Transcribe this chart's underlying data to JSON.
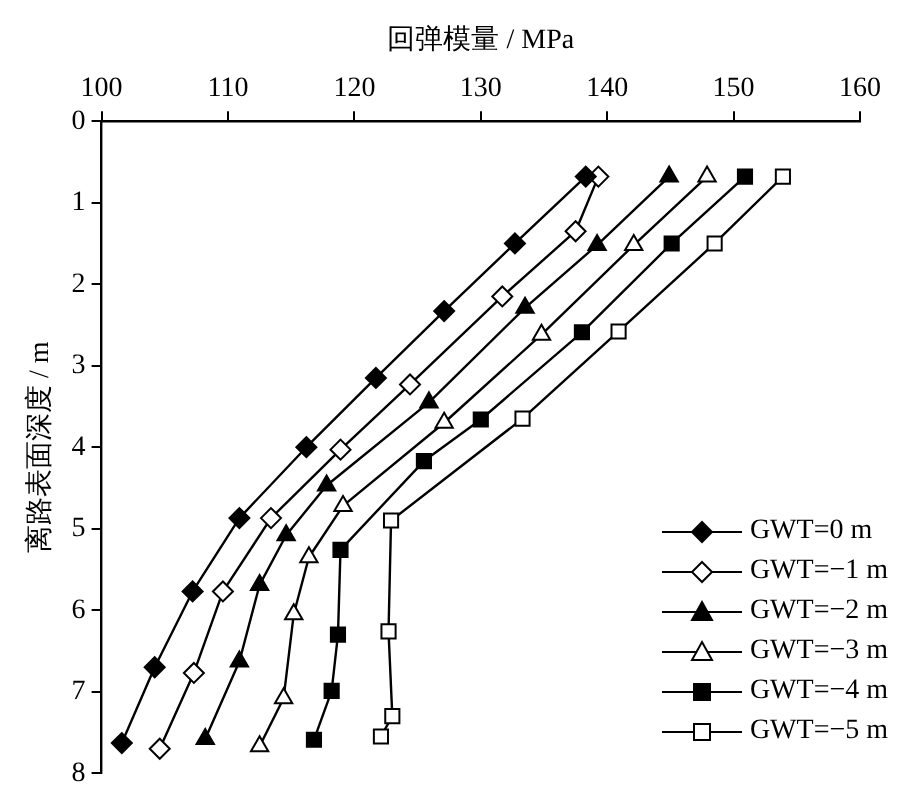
{
  "chart_data": {
    "type": "line",
    "xlabel": "回弹模量 / MPa",
    "ylabel": "离路表面深度 / m",
    "xlim": [
      100,
      160
    ],
    "xticks": [
      100,
      110,
      120,
      130,
      140,
      150,
      160
    ],
    "ylim": [
      8,
      0
    ],
    "yticks": [
      0,
      1,
      2,
      3,
      4,
      5,
      6,
      7,
      8
    ],
    "grid": false,
    "legend": "bottom right",
    "line_style": "solid",
    "series": [
      {
        "name": "GWT=0 m",
        "color": "#000000",
        "marker": "diamond",
        "x": [
          138.3,
          132.7,
          127.1,
          121.7,
          116.2,
          110.9,
          107.2,
          104.2,
          101.6
        ],
        "values": [
          0.68,
          1.5,
          2.33,
          3.15,
          4.0,
          4.87,
          5.77,
          6.7,
          7.63
        ]
      },
      {
        "name": "GWT=−1 m",
        "color": "#000000",
        "marker": "diamond",
        "x": [
          139.3,
          137.5,
          131.7,
          124.4,
          118.9,
          113.4,
          109.6,
          107.3,
          104.6
        ],
        "values": [
          0.68,
          1.35,
          2.15,
          3.23,
          4.03,
          4.87,
          5.77,
          6.77,
          7.7
        ]
      },
      {
        "name": "GWT=−2 m",
        "color": "#000000",
        "marker": "triangle",
        "x": [
          144.9,
          139.2,
          133.5,
          125.9,
          117.8,
          114.6,
          112.5,
          110.9,
          108.2
        ],
        "values": [
          0.68,
          1.52,
          2.29,
          3.45,
          4.47,
          5.08,
          5.69,
          6.63,
          7.58
        ]
      },
      {
        "name": "GWT=−3 m",
        "color": "#000000",
        "marker": "triangle",
        "x": [
          147.9,
          142.1,
          134.8,
          127.1,
          119.1,
          116.4,
          115.2,
          114.4,
          112.5
        ],
        "values": [
          0.68,
          1.52,
          2.62,
          3.7,
          4.72,
          5.35,
          6.05,
          7.08,
          7.67
        ]
      },
      {
        "name": "GWT=−4 m",
        "color": "#000000",
        "marker": "square",
        "x": [
          150.9,
          145.1,
          138.0,
          130.0,
          125.5,
          118.9,
          118.7,
          118.2,
          116.8
        ],
        "values": [
          0.68,
          1.5,
          2.59,
          3.66,
          4.17,
          5.26,
          6.3,
          6.99,
          7.59
        ]
      },
      {
        "name": "GWT=−5 m",
        "color": "#000000",
        "marker": "square",
        "x": [
          153.9,
          148.5,
          140.9,
          133.3,
          122.9,
          122.7,
          123.0,
          122.1
        ],
        "values": [
          0.68,
          1.5,
          2.58,
          3.65,
          4.9,
          6.26,
          7.3,
          7.55
        ]
      }
    ]
  }
}
